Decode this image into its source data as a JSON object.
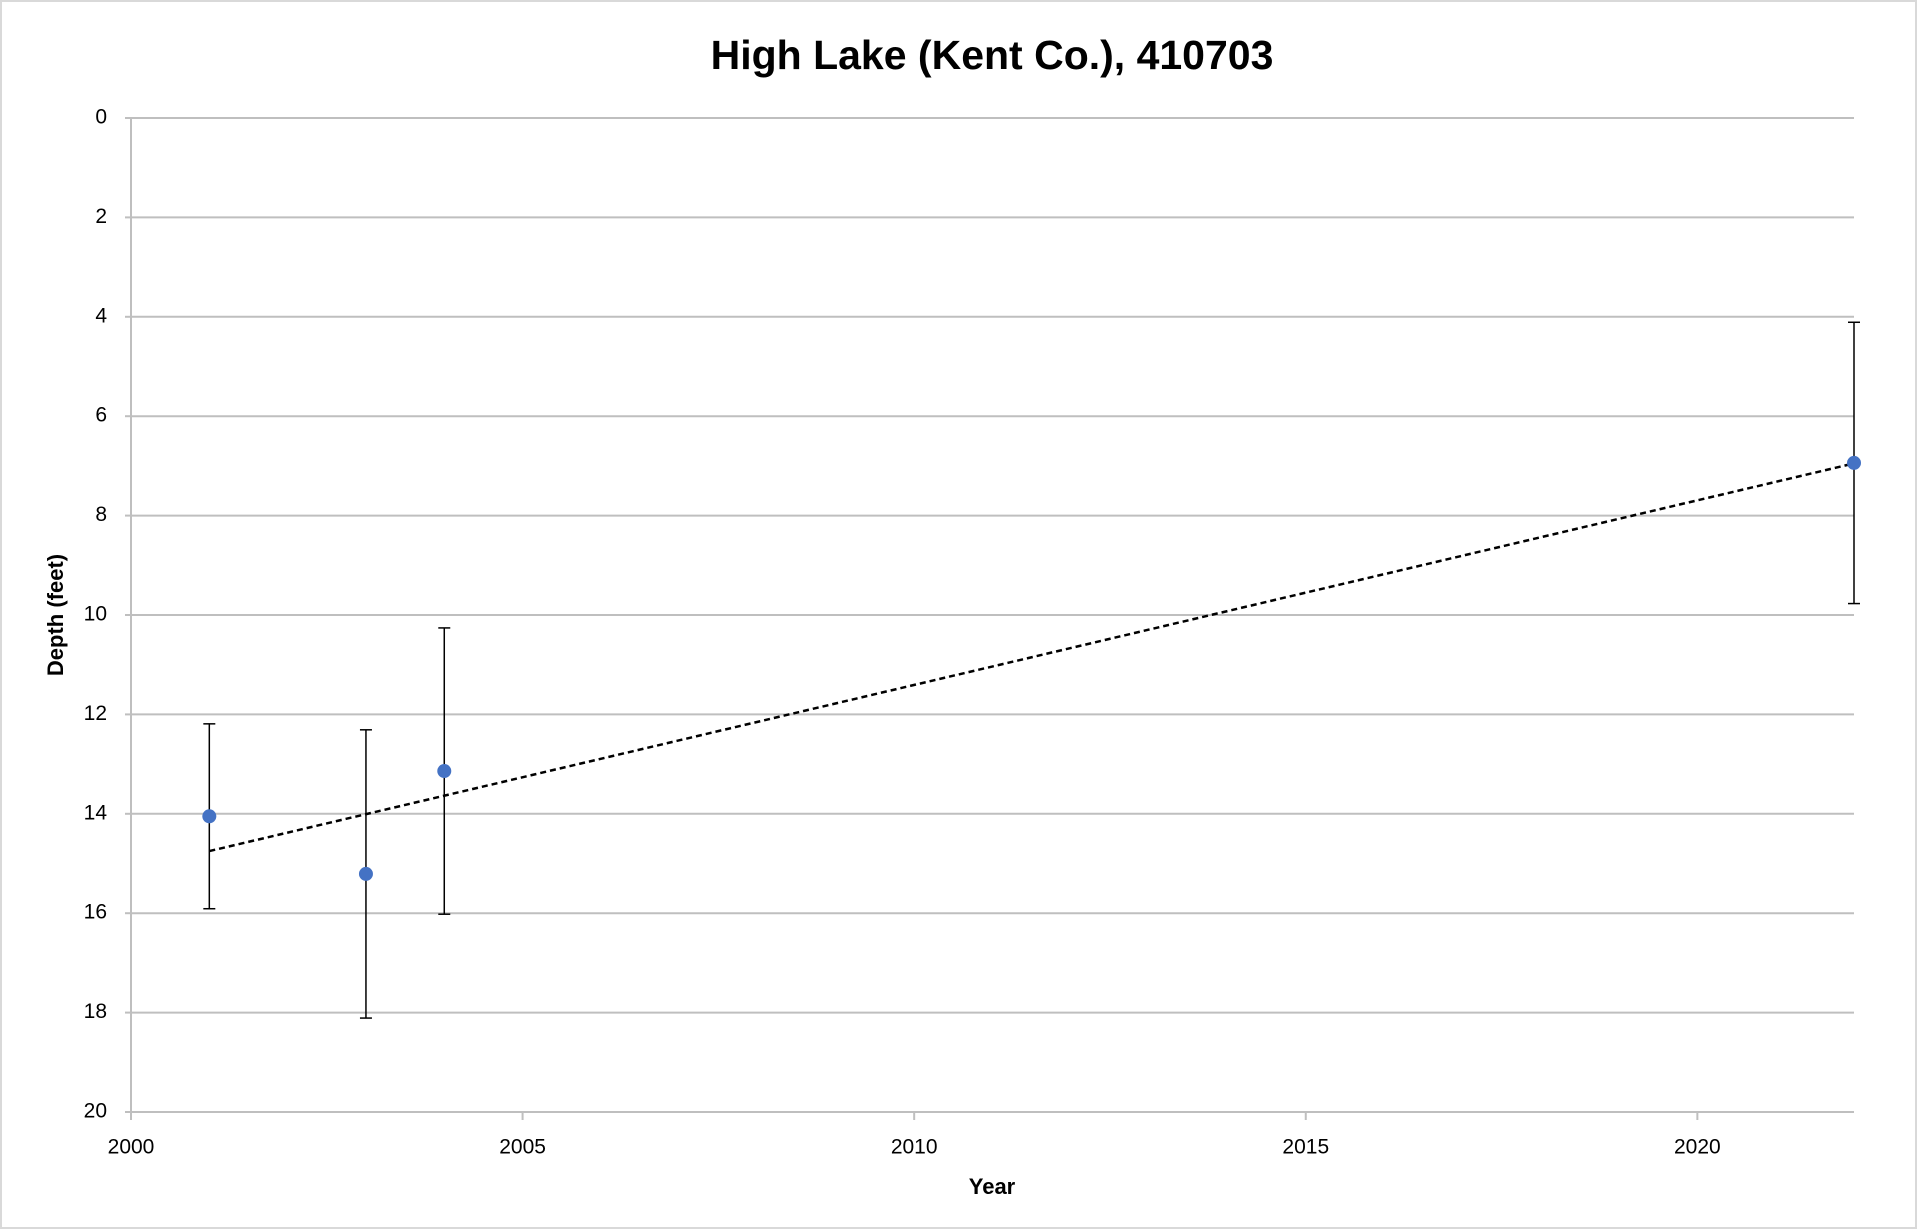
{
  "chart_data": {
    "type": "scatter",
    "title": "High Lake (Kent Co.), 410703",
    "x_label": "Year",
    "y_label": "Depth (feet)",
    "xlim": [
      2000,
      2022
    ],
    "xticks": [
      2000,
      2005,
      2010,
      2015,
      2020
    ],
    "ylim": [
      0,
      20
    ],
    "yticks": [
      0,
      2,
      4,
      6,
      8,
      10,
      12,
      14,
      16,
      18,
      20
    ],
    "y_inverted": true,
    "grid": true,
    "series": [
      {
        "color": "#4472c4",
        "x": [
          2001,
          2003,
          2004,
          2022
        ],
        "values": [
          14.05,
          15.21,
          13.14,
          6.94
        ],
        "errors": [
          1.86,
          2.9,
          2.88,
          2.83
        ]
      }
    ],
    "trendline": {
      "color": "#000000",
      "x": [
        2001,
        2022
      ],
      "values": [
        14.75,
        6.95
      ]
    }
  }
}
